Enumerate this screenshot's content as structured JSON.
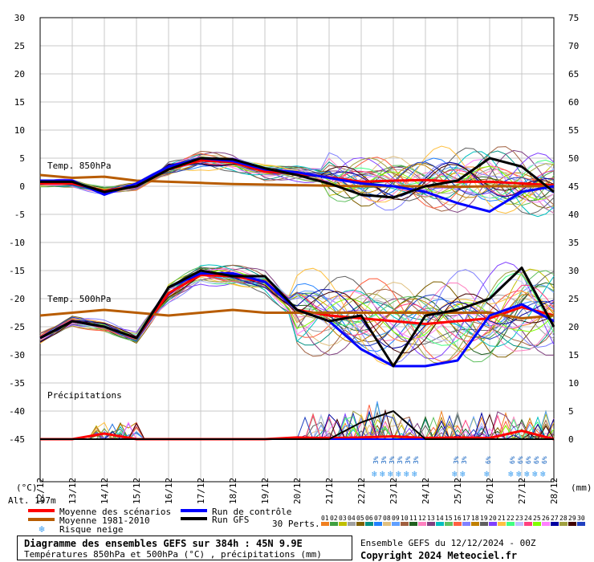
{
  "chart_data": {
    "type": "line",
    "x": [
      "12/12",
      "13/12",
      "14/12",
      "15/12",
      "16/12",
      "17/12",
      "18/12",
      "19/12",
      "20/12",
      "21/12",
      "22/12",
      "23/12",
      "24/12",
      "25/12",
      "26/12",
      "27/12",
      "28/12"
    ],
    "y_left_ticks": [
      30,
      25,
      20,
      15,
      10,
      5,
      0,
      -5,
      -10,
      -15,
      -20,
      -25,
      -30,
      -35,
      -40,
      -45
    ],
    "y_right_ticks": [
      75,
      70,
      65,
      60,
      55,
      50,
      45,
      40,
      35,
      30,
      25,
      20,
      15,
      10,
      5,
      0
    ],
    "left_unit": "(°C)",
    "right_unit": "(mm)",
    "panel_labels": {
      "t850": "Temp. 850hPa",
      "t500": "Temp. 500hPa",
      "precip": "Précipitations"
    },
    "snow_risk_marker": "3%",
    "snow_risk_dates": [
      "22/12",
      "23/12",
      "24/12",
      "25/12",
      "26/12",
      "27/12"
    ],
    "snow_risk_values": [
      "3%",
      "3%",
      "3%",
      "3%",
      "3%",
      "3%",
      "3%",
      "3%",
      "6%",
      "6%",
      "6%",
      "6%",
      "6%",
      "6%"
    ],
    "series": [
      {
        "name": "Moyenne des scénarios",
        "color": "#ff0000",
        "t850": [
          0.5,
          0.5,
          -0.8,
          0,
          3,
          4.6,
          4.3,
          2.6,
          2.3,
          1.6,
          0.8,
          1,
          1.1,
          0.8,
          0.8,
          0.5,
          0.2
        ],
        "t500": [
          -27,
          -24,
          -25,
          -27,
          -19,
          -15.8,
          -16,
          -17,
          -22,
          -23,
          -23.5,
          -24,
          -24.5,
          -24,
          -23.5,
          -21.5,
          -23
        ],
        "precip": [
          0,
          0,
          1,
          0,
          0,
          0,
          0,
          0,
          0.3,
          0.2,
          0.3,
          0.5,
          0.2,
          0.3,
          0.2,
          1.5,
          0
        ]
      },
      {
        "name": "Moyenne 1981-2010",
        "color": "#b85c00",
        "t850": [
          2,
          1.5,
          1.7,
          1,
          0.8,
          0.6,
          0.4,
          0.3,
          0.2,
          0.1,
          0,
          0,
          0,
          -0.1,
          0,
          0,
          0
        ],
        "t500": [
          -23,
          -22.5,
          -22,
          -22.5,
          -23,
          -22.5,
          -22,
          -22.5,
          -22.5,
          -22.5,
          -22.5,
          -22.5,
          -22.5,
          -22.5,
          -22.5,
          -23.5,
          -23
        ]
      },
      {
        "name": "Run de contrôle",
        "color": "#0000ff",
        "t850": [
          1,
          1,
          -1.5,
          0.5,
          3.5,
          5,
          4.5,
          3,
          2.5,
          1.5,
          0.5,
          0,
          -1,
          -3,
          -4.5,
          -1,
          0
        ],
        "t500": [
          -27,
          -24,
          -25,
          -27,
          -18,
          -15.5,
          -15.5,
          -17,
          -22,
          -24,
          -29,
          -32,
          -32,
          -31,
          -23,
          -21,
          -24
        ],
        "precip": [
          0,
          0,
          0,
          0,
          0,
          0,
          0,
          0,
          0,
          0,
          0,
          0,
          0,
          0,
          0,
          0,
          0
        ]
      },
      {
        "name": "Run GFS",
        "color": "#000000",
        "t850": [
          0.8,
          0.8,
          -1,
          0,
          3,
          5,
          4.8,
          3.2,
          2,
          0.5,
          -1.5,
          -2,
          0,
          1,
          5,
          3.5,
          -1
        ],
        "t500": [
          -27,
          -24,
          -25,
          -27,
          -18,
          -15,
          -16,
          -16,
          -22,
          -24,
          -23,
          -32,
          -23,
          -22,
          -20,
          -14.5,
          -25
        ],
        "precip": [
          0,
          0,
          0,
          0,
          0,
          0,
          0,
          0,
          0,
          0,
          3,
          5,
          0,
          0,
          0,
          0,
          0
        ]
      }
    ],
    "legend_snow": "Risque neige"
  },
  "labels": {
    "alt": "Alt. 197m",
    "perts": "30 Perts.",
    "pert_numbers": [
      "01",
      "02",
      "03",
      "04",
      "05",
      "06",
      "07",
      "08",
      "09",
      "10",
      "11",
      "12",
      "13",
      "14",
      "15",
      "16",
      "17",
      "18",
      "19",
      "20",
      "21",
      "22",
      "23",
      "24",
      "25",
      "26",
      "27",
      "28",
      "29",
      "30"
    ],
    "pert_colors": [
      "#f08020",
      "#40a040",
      "#c0c000",
      "#a0a0a0",
      "#806000",
      "#009080",
      "#2080ff",
      "#e0c080",
      "#60a0ff",
      "#a06040",
      "#206020",
      "#ff80c0",
      "#804080",
      "#00c0c0",
      "#60c060",
      "#ff6040",
      "#8080ff",
      "#c08000",
      "#606060",
      "#8040ff",
      "#ffc040",
      "#40ff80",
      "#c0c0ff",
      "#ff4080",
      "#80ff00",
      "#ff80ff",
      "#0000a0",
      "#a0a040",
      "#400000",
      "#2040c0"
    ],
    "title": "Diagramme des ensembles GEFS sur 384h : 45N 9.9E",
    "subtitle": "Températures 850hPa et 500hPa (°C) , précipitations (mm)",
    "ensemble": "Ensemble GEFS du 12/12/2024 - 00Z",
    "copyright": "Copyright 2024 Meteociel.fr"
  }
}
